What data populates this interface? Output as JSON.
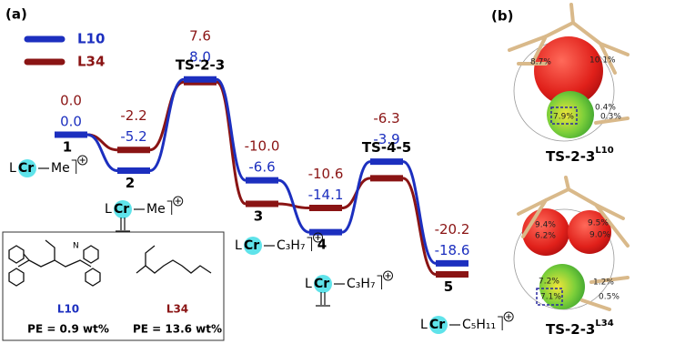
{
  "chart_data": {
    "type": "energy-profile",
    "panel_label": "(a)",
    "categories": [
      "1",
      "2",
      "TS-2-3",
      "3",
      "4",
      "TS-4-5",
      "5"
    ],
    "series": [
      {
        "name": "L10",
        "color": "#1c2fbf",
        "values": [
          0,
          -5.2,
          8,
          -6.6,
          -14.1,
          -3.9,
          -18.6
        ],
        "value_labels": [
          "0.0",
          "-5.2",
          "8.0",
          "-6.6",
          "-14.1",
          "-3.9",
          "-18.6"
        ]
      },
      {
        "name": "L34",
        "color": "#8a1414",
        "values": [
          0,
          -2.2,
          7.6,
          -10,
          -10.6,
          -6.3,
          -20.2
        ],
        "value_labels": [
          "0.0",
          "-2.2",
          "7.6",
          "-10.0",
          "-10.6",
          "-6.3",
          "-20.2"
        ]
      }
    ],
    "structures": [
      {
        "ligand": "L",
        "metal": "Cr",
        "group": "Me"
      },
      {
        "ligand": "L",
        "metal": "Cr",
        "group": "Me"
      },
      {
        "ligand": "L",
        "metal": "Cr",
        "group": "C₃H₇"
      },
      {
        "ligand": "L",
        "metal": "Cr",
        "group": "C₃H₇"
      },
      {
        "ligand": "L",
        "metal": "Cr",
        "group": "C₅H₁₁"
      }
    ],
    "ligand_box": [
      {
        "name": "L10",
        "pe": "PE = 0.9 wt%"
      },
      {
        "name": "L34",
        "pe": "PE = 13.6 wt%"
      }
    ]
  },
  "panel_b": {
    "label": "(b)",
    "structures": [
      {
        "title": "TS-2-3",
        "superscript": "L10",
        "annotations": [
          "8.7%",
          "10.1%",
          "7.9%",
          "0.4%",
          "0.3%"
        ]
      },
      {
        "title": "TS-2-3",
        "superscript": "L34",
        "annotations": [
          "9.4%",
          "6.2%",
          "9.5%",
          "9.0%",
          "7.2%",
          "7.1%",
          "1.2%",
          "0.5%"
        ]
      }
    ]
  }
}
